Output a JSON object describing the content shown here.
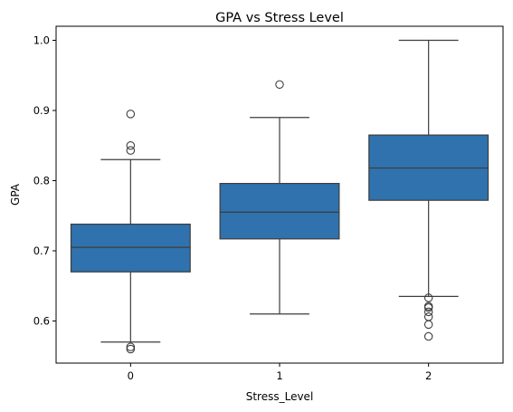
{
  "chart_data": {
    "type": "box",
    "title": "GPA vs Stress Level",
    "xlabel": "Stress_Level",
    "ylabel": "GPA",
    "categories": [
      "0",
      "1",
      "2"
    ],
    "ylim": [
      0.54,
      1.02
    ],
    "yticks": [
      0.6,
      0.7,
      0.8,
      0.9,
      1.0
    ],
    "ytick_labels": [
      "0.6",
      "0.7",
      "0.8",
      "0.9",
      "1.0"
    ],
    "box_color": "#2f72ad",
    "line_color": "#3d3d3d",
    "grid": false,
    "legend": false,
    "boxes": [
      {
        "category": "0",
        "whisker_low": 0.57,
        "q1": 0.67,
        "median": 0.705,
        "q3": 0.738,
        "whisker_high": 0.83,
        "outliers": [
          0.895,
          0.85,
          0.843,
          0.563,
          0.56
        ]
      },
      {
        "category": "1",
        "whisker_low": 0.61,
        "q1": 0.717,
        "median": 0.755,
        "q3": 0.796,
        "whisker_high": 0.89,
        "outliers": [
          0.937
        ]
      },
      {
        "category": "2",
        "whisker_low": 0.635,
        "q1": 0.772,
        "median": 0.818,
        "q3": 0.865,
        "whisker_high": 1.0,
        "outliers": [
          0.633,
          0.621,
          0.619,
          0.613,
          0.606,
          0.595,
          0.578
        ]
      }
    ]
  }
}
